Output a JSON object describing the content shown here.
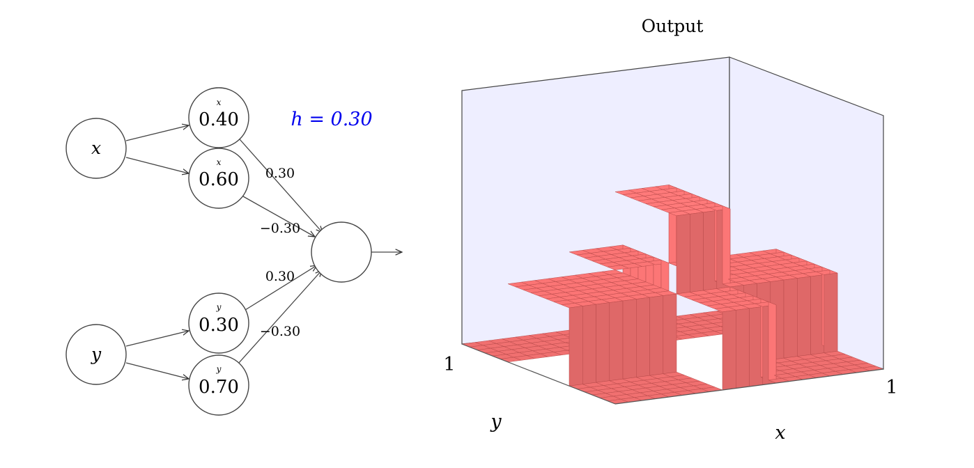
{
  "network": {
    "inputs": [
      {
        "label": "x"
      },
      {
        "label": "y"
      }
    ],
    "hidden": [
      {
        "variable": "x",
        "bias": "0.40",
        "weight": "0.30"
      },
      {
        "variable": "x",
        "bias": "0.60",
        "weight": "−0.30"
      },
      {
        "variable": "y",
        "bias": "0.30",
        "weight": "0.30"
      },
      {
        "variable": "y",
        "bias": "0.70",
        "weight": "−0.30"
      }
    ],
    "h_label": "h = 0.30",
    "h_color": "#0000ee"
  },
  "plot": {
    "title": "Output",
    "x_label": "x",
    "y_label": "y",
    "x_tick": "1",
    "y_tick": "1",
    "surface_color": "#f07070",
    "wall_color": "#eeeeff",
    "surface": {
      "description_values": "output = h on each bump region, 0 elsewhere",
      "x_bump": [
        0.4,
        0.6
      ],
      "y_bump": [
        0.3,
        0.7
      ],
      "base": 0.0,
      "ridge_height": 0.3,
      "center_height": 0.6,
      "zlim": [
        0,
        1
      ]
    }
  }
}
